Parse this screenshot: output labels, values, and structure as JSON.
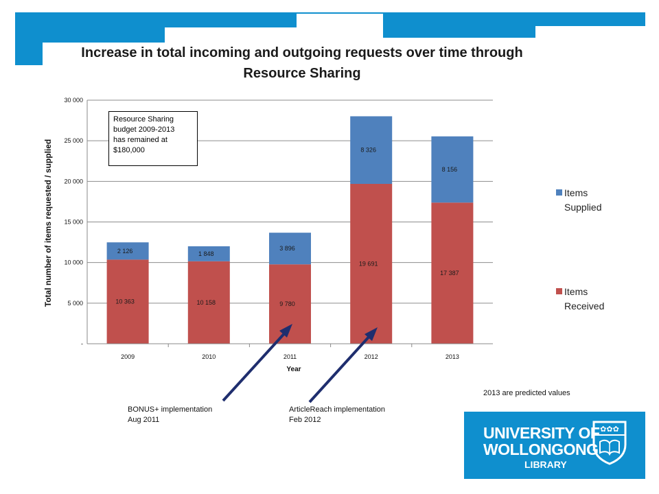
{
  "chart_data": {
    "type": "bar",
    "stacked": true,
    "title": "Increase in total incoming and outgoing requests over time through Resource Sharing",
    "xlabel": "Year",
    "ylabel": "Total number of items requested / supplied",
    "ylim": [
      0,
      30000
    ],
    "yticks": [
      "-",
      "5 000",
      "10 000",
      "15 000",
      "20 000",
      "25 000",
      "30 000"
    ],
    "grid": true,
    "legend_position": "right",
    "categories": [
      "2009",
      "2010",
      "2011",
      "2012",
      "2013"
    ],
    "series": [
      {
        "name": "Items Received",
        "values": [
          10363,
          10158,
          9780,
          19691,
          17387
        ],
        "labels": [
          "10 363",
          "10 158",
          "9 780",
          "19 691",
          "17 387"
        ],
        "color": "#c0504d"
      },
      {
        "name": "Items Supplied",
        "values": [
          2126,
          1848,
          3896,
          8326,
          8156
        ],
        "labels": [
          "2 126",
          "1 848",
          "3 896",
          "8 326",
          "8 156"
        ],
        "color": "#4f81bd"
      }
    ]
  },
  "title_line1": "Increase in total incoming and outgoing requests over time through",
  "title_line2": "Resource Sharing",
  "budget_note": {
    "line1": "Resource Sharing",
    "line2": "budget 2009-2013",
    "line3": "has remained at",
    "line4": "$180,000"
  },
  "legend": {
    "supplied_line1": "Items",
    "supplied_line2": "Supplied",
    "received_line1": "Items",
    "received_line2": "Received"
  },
  "annotations": {
    "bonus_line1": "BONUS+ implementation",
    "bonus_line2": "Aug 2011",
    "article_line1": "ArticleReach implementation",
    "article_line2": "Feb 2012",
    "predicted": "2013 are predicted values"
  },
  "logo": {
    "line1": "UNIVERSITY OF",
    "line2": "WOLLONGONG",
    "line3": "LIBRARY"
  },
  "colors": {
    "frame_blue": "#0f8fce",
    "received": "#c0504d",
    "supplied": "#4f81bd",
    "arrow": "#1f2e6e"
  }
}
